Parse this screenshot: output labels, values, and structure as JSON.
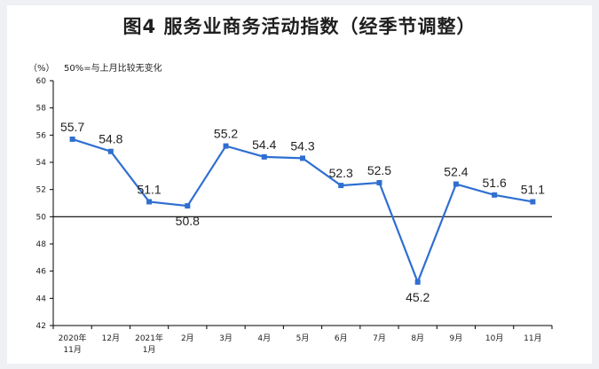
{
  "chart_data": {
    "type": "line",
    "title": "图4  服务业商务活动指数（经季节调整）",
    "unit": "（%）",
    "note": "50%=与上月比较无变化",
    "categories": [
      [
        "2020年",
        "11月"
      ],
      [
        "12月"
      ],
      [
        "2021年",
        "1月"
      ],
      [
        "2月"
      ],
      [
        "3月"
      ],
      [
        "4月"
      ],
      [
        "5月"
      ],
      [
        "6月"
      ],
      [
        "7月"
      ],
      [
        "8月"
      ],
      [
        "9月"
      ],
      [
        "10月"
      ],
      [
        "11月"
      ]
    ],
    "values": [
      55.7,
      54.8,
      51.1,
      50.8,
      55.2,
      54.4,
      54.3,
      52.3,
      52.5,
      45.2,
      52.4,
      51.6,
      51.1
    ],
    "value_labels": [
      "55.7",
      "54.8",
      "51.1",
      "50.8",
      "55.2",
      "54.4",
      "54.3",
      "52.3",
      "52.5",
      "45.2",
      "52.4",
      "51.6",
      "51.1"
    ],
    "label_positions": [
      "above",
      "above",
      "above",
      "below",
      "above",
      "above",
      "above",
      "above",
      "above",
      "below",
      "above",
      "above",
      "above"
    ],
    "yticks": [
      "60",
      "58",
      "56",
      "54",
      "52",
      "50",
      "48",
      "46",
      "44",
      "42"
    ],
    "ylim": [
      42,
      60
    ],
    "reference_value": 50,
    "colors": {
      "line": "#2f6fd1",
      "marker": "#2f6fd1",
      "axis": "#000000"
    }
  }
}
